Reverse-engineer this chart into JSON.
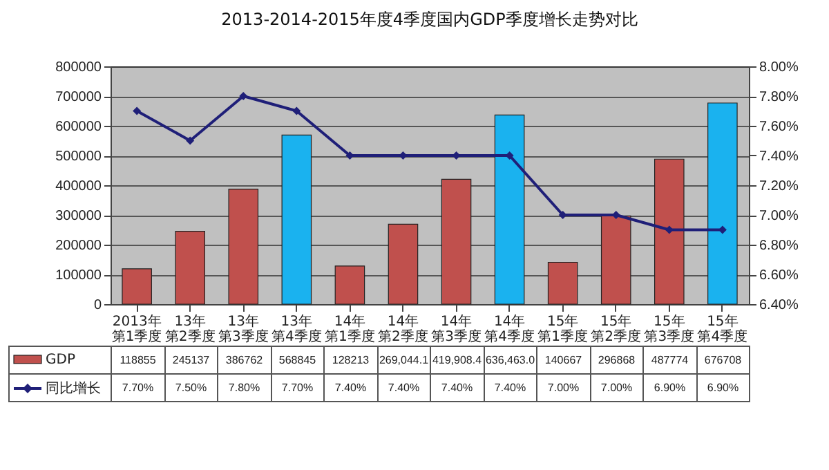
{
  "chart_data": {
    "type": "bar",
    "title": "2013-2014-2015年度4季度国内GDP季度增长走势对比",
    "categories": [
      "2013年第1季度",
      "13年第2季度",
      "13年第3季度",
      "13年第4季度",
      "14年第1季度",
      "14年第2季度",
      "14年第3季度",
      "14年第4季度",
      "15年第1季度",
      "15年第2季度",
      "15年第3季度",
      "15年第4季度"
    ],
    "series": [
      {
        "name": "GDP",
        "color": "#c0504d",
        "colors": [
          "#c0504d",
          "#c0504d",
          "#c0504d",
          "#1ab2ef",
          "#c0504d",
          "#c0504d",
          "#c0504d",
          "#1ab2ef",
          "#c0504d",
          "#c0504d",
          "#c0504d",
          "#1ab2ef"
        ],
        "values": [
          118855,
          245137,
          386762,
          568845,
          128213,
          269044.1,
          419908.4,
          636463.0,
          140667,
          296868,
          487774,
          676708
        ],
        "value_labels": [
          "118855",
          "245137",
          "386762",
          "568845",
          "128213",
          "269,044.1",
          "419,908.4",
          "636,463.0",
          "140667",
          "296868",
          "487774",
          "676708"
        ]
      },
      {
        "name": "同比增长",
        "type": "line",
        "axis": "y2",
        "color": "#1f1f78",
        "marker": "diamond",
        "values": [
          7.7,
          7.5,
          7.8,
          7.7,
          7.4,
          7.4,
          7.4,
          7.4,
          7.0,
          7.0,
          6.9,
          6.9
        ],
        "value_labels": [
          "7.70%",
          "7.50%",
          "7.80%",
          "7.70%",
          "7.40%",
          "7.40%",
          "7.40%",
          "7.40%",
          "7.00%",
          "7.00%",
          "6.90%",
          "6.90%"
        ]
      }
    ],
    "ylim": [
      0,
      800000
    ],
    "yticks": [
      0,
      100000,
      200000,
      300000,
      400000,
      500000,
      600000,
      700000,
      800000
    ],
    "y2lim": [
      6.4,
      8.0
    ],
    "y2ticks": [
      {
        "value": 6.4,
        "label": "6.40%"
      },
      {
        "value": 6.6,
        "label": "6.60%"
      },
      {
        "value": 6.8,
        "label": "6.80%"
      },
      {
        "value": 7.0,
        "label": "7.00%"
      },
      {
        "value": 7.2,
        "label": "7.20%"
      },
      {
        "value": 7.4,
        "label": "7.40%"
      },
      {
        "value": 7.6,
        "label": "7.60%"
      },
      {
        "value": 7.8,
        "label": "7.80%"
      },
      {
        "value": 8.0,
        "label": "8.00%"
      }
    ],
    "grid": "y",
    "legend": "bottom"
  }
}
